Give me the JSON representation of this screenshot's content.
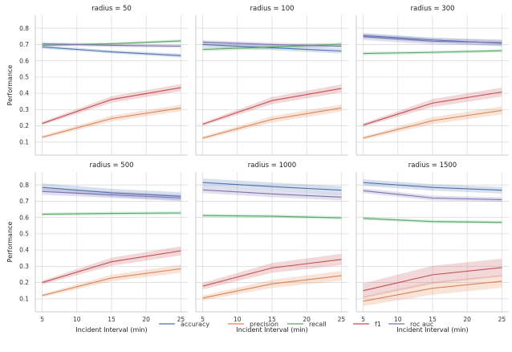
{
  "chart_data": {
    "type": "line",
    "facet_variable": "radius",
    "x": [
      5,
      15,
      25
    ],
    "xticks": [
      5,
      10,
      15,
      20,
      25
    ],
    "xlim": [
      4,
      26
    ],
    "ylim": [
      0.02,
      0.88
    ],
    "yticks": [
      0.1,
      0.2,
      0.3,
      0.4,
      0.5,
      0.6,
      0.7,
      0.8
    ],
    "ytick_labels": [
      "0.1",
      "0.2",
      "0.3",
      "0.4",
      "0.5",
      "0.6",
      "0.7",
      "0.8"
    ],
    "xtick_labels": [
      "5",
      "10",
      "15",
      "20",
      "25"
    ],
    "xlabel": "Incident Interval (min)",
    "ylabel": "Performance",
    "grid": true,
    "legend": {
      "position": "bottom-center",
      "entries": [
        "accuracy",
        "precision",
        "recall",
        "f1",
        "roc auc"
      ]
    },
    "colors": {
      "accuracy": "#4c72b0",
      "precision": "#dd8452",
      "recall": "#55a868",
      "f1": "#c44e52",
      "roc auc": "#8172b3"
    },
    "panels": [
      {
        "title": "radius = 50",
        "series": [
          {
            "name": "accuracy",
            "values": [
              0.685,
              0.655,
              0.632
            ],
            "ci": [
              0.01,
              0.01,
              0.012
            ]
          },
          {
            "name": "precision",
            "values": [
              0.13,
              0.245,
              0.31
            ],
            "ci": [
              0.01,
              0.018,
              0.02
            ]
          },
          {
            "name": "recall",
            "values": [
              0.695,
              0.705,
              0.722
            ],
            "ci": [
              0.008,
              0.008,
              0.01
            ]
          },
          {
            "name": "f1",
            "values": [
              0.215,
              0.362,
              0.435
            ],
            "ci": [
              0.01,
              0.02,
              0.022
            ]
          },
          {
            "name": "roc auc",
            "values": [
              0.705,
              0.695,
              0.69
            ],
            "ci": [
              0.01,
              0.01,
              0.01
            ]
          }
        ]
      },
      {
        "title": "radius = 100",
        "series": [
          {
            "name": "accuracy",
            "values": [
              0.7,
              0.68,
              0.66
            ],
            "ci": [
              0.015,
              0.015,
              0.015
            ]
          },
          {
            "name": "precision",
            "values": [
              0.125,
              0.24,
              0.31
            ],
            "ci": [
              0.01,
              0.02,
              0.022
            ]
          },
          {
            "name": "recall",
            "values": [
              0.67,
              0.685,
              0.702
            ],
            "ci": [
              0.012,
              0.012,
              0.012
            ]
          },
          {
            "name": "f1",
            "values": [
              0.21,
              0.355,
              0.43
            ],
            "ci": [
              0.01,
              0.022,
              0.025
            ]
          },
          {
            "name": "roc auc",
            "values": [
              0.715,
              0.7,
              0.69
            ],
            "ci": [
              0.012,
              0.012,
              0.012
            ]
          }
        ]
      },
      {
        "title": "radius = 300",
        "series": [
          {
            "name": "accuracy",
            "values": [
              0.755,
              0.728,
              0.708
            ],
            "ci": [
              0.015,
              0.015,
              0.018
            ]
          },
          {
            "name": "precision",
            "values": [
              0.125,
              0.232,
              0.295
            ],
            "ci": [
              0.01,
              0.022,
              0.025
            ]
          },
          {
            "name": "recall",
            "values": [
              0.645,
              0.652,
              0.662
            ],
            "ci": [
              0.01,
              0.01,
              0.01
            ]
          },
          {
            "name": "f1",
            "values": [
              0.205,
              0.34,
              0.408
            ],
            "ci": [
              0.01,
              0.025,
              0.028
            ]
          },
          {
            "name": "roc auc",
            "values": [
              0.748,
              0.72,
              0.712
            ],
            "ci": [
              0.02,
              0.02,
              0.02
            ]
          }
        ]
      },
      {
        "title": "radius = 500",
        "series": [
          {
            "name": "accuracy",
            "values": [
              0.785,
              0.752,
              0.73
            ],
            "ci": [
              0.025,
              0.025,
              0.025
            ]
          },
          {
            "name": "precision",
            "values": [
              0.12,
              0.228,
              0.285
            ],
            "ci": [
              0.01,
              0.02,
              0.025
            ]
          },
          {
            "name": "recall",
            "values": [
              0.62,
              0.625,
              0.628
            ],
            "ci": [
              0.01,
              0.01,
              0.01
            ]
          },
          {
            "name": "f1",
            "values": [
              0.2,
              0.328,
              0.395
            ],
            "ci": [
              0.012,
              0.025,
              0.028
            ]
          },
          {
            "name": "roc auc",
            "values": [
              0.76,
              0.74,
              0.72
            ],
            "ci": [
              0.02,
              0.02,
              0.02
            ]
          }
        ]
      },
      {
        "title": "radius = 1000",
        "series": [
          {
            "name": "accuracy",
            "values": [
              0.815,
              0.79,
              0.768
            ],
            "ci": [
              0.025,
              0.025,
              0.025
            ]
          },
          {
            "name": "precision",
            "values": [
              0.105,
              0.192,
              0.242
            ],
            "ci": [
              0.015,
              0.025,
              0.03
            ]
          },
          {
            "name": "recall",
            "values": [
              0.612,
              0.608,
              0.598
            ],
            "ci": [
              0.01,
              0.01,
              0.01
            ]
          },
          {
            "name": "f1",
            "values": [
              0.178,
              0.29,
              0.342
            ],
            "ci": [
              0.02,
              0.03,
              0.035
            ]
          },
          {
            "name": "roc auc",
            "values": [
              0.77,
              0.745,
              0.725
            ],
            "ci": [
              0.02,
              0.02,
              0.02
            ]
          }
        ]
      },
      {
        "title": "radius = 1500",
        "series": [
          {
            "name": "accuracy",
            "values": [
              0.815,
              0.785,
              0.768
            ],
            "ci": [
              0.02,
              0.02,
              0.02
            ]
          },
          {
            "name": "precision",
            "values": [
              0.085,
              0.165,
              0.208
            ],
            "ci": [
              0.03,
              0.04,
              0.04
            ]
          },
          {
            "name": "recall",
            "values": [
              0.595,
              0.575,
              0.57
            ],
            "ci": [
              0.01,
              0.01,
              0.01
            ]
          },
          {
            "name": "f1",
            "values": [
              0.15,
              0.248,
              0.292
            ],
            "ci": [
              0.045,
              0.055,
              0.055
            ]
          },
          {
            "name": "roc auc",
            "values": [
              0.765,
              0.72,
              0.71
            ],
            "ci": [
              0.015,
              0.015,
              0.015
            ]
          }
        ]
      }
    ]
  }
}
